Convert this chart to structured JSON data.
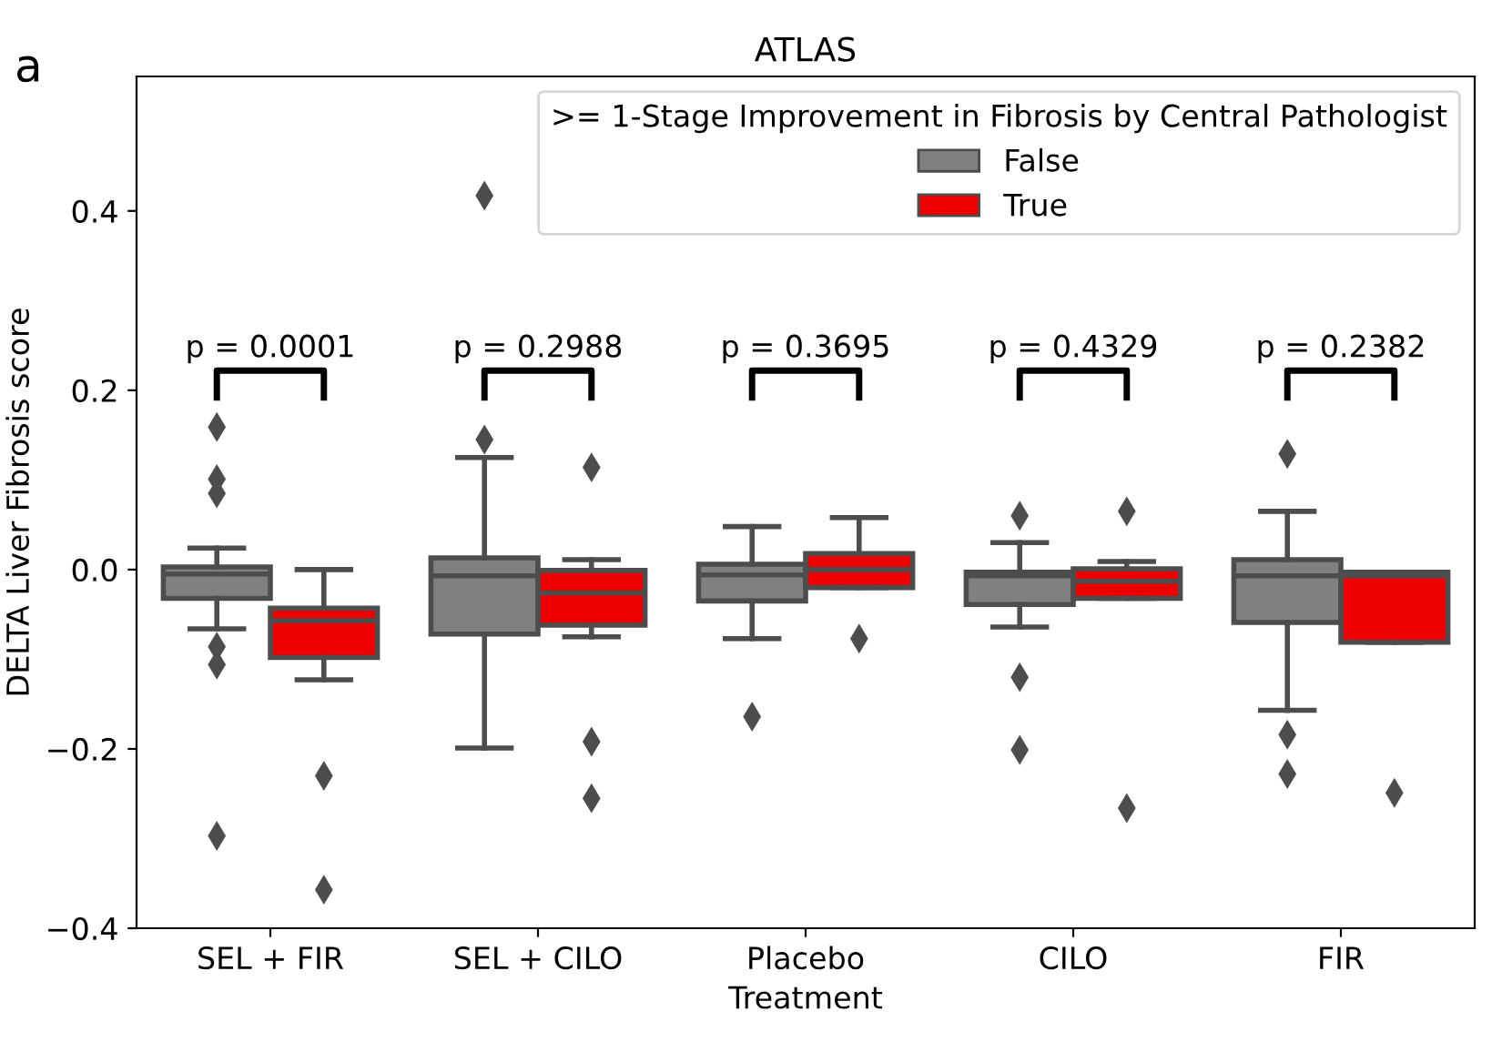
{
  "chart_data": {
    "type": "box",
    "title": "ATLAS",
    "xlabel": "Treatment",
    "ylabel": "DELTA Liver Fibrosis score",
    "legend_title": ">= 1-Stage Improvement in Fibrosis by Central Pathologist",
    "legend": "top right",
    "grid": false,
    "categories": [
      "SEL + FIR",
      "SEL + CILO",
      "Placebo",
      "CILO",
      "FIR"
    ],
    "ylim": [
      -0.4,
      0.55
    ],
    "yticks": [
      {
        "value": -0.4,
        "label": "−0.4"
      },
      {
        "value": -0.2,
        "label": "−0.2"
      },
      {
        "value": 0.0,
        "label": "0.0"
      },
      {
        "value": 0.2,
        "label": "0.2"
      },
      {
        "value": 0.4,
        "label": "0.4"
      }
    ],
    "marker": "diamond",
    "series": [
      {
        "name": "False",
        "color": "#808080",
        "boxes": [
          {
            "low": -0.066,
            "q1": -0.032,
            "median": -0.005,
            "q3": 0.003,
            "high": 0.024,
            "outliers": [
              0.159,
              0.101,
              0.085,
              -0.086,
              -0.106,
              -0.297
            ]
          },
          {
            "low": -0.199,
            "q1": -0.072,
            "median": -0.007,
            "q3": 0.013,
            "high": 0.125,
            "outliers": [
              0.145,
              0.417
            ]
          },
          {
            "low": -0.077,
            "q1": -0.035,
            "median": -0.006,
            "q3": 0.006,
            "high": 0.048,
            "outliers": [
              -0.164
            ]
          },
          {
            "low": -0.064,
            "q1": -0.039,
            "median": -0.007,
            "q3": -0.003,
            "high": 0.03,
            "outliers": [
              0.06,
              -0.12,
              -0.201
            ]
          },
          {
            "low": -0.157,
            "q1": -0.059,
            "median": -0.007,
            "q3": 0.011,
            "high": 0.065,
            "outliers": [
              0.129,
              -0.184,
              -0.228
            ]
          }
        ]
      },
      {
        "name": "True",
        "color": "#ee0000",
        "boxes": [
          {
            "low": -0.123,
            "q1": -0.098,
            "median": -0.057,
            "q3": -0.043,
            "high": 0.0,
            "outliers": [
              -0.23,
              -0.357
            ]
          },
          {
            "low": -0.075,
            "q1": -0.062,
            "median": -0.026,
            "q3": -0.001,
            "high": 0.011,
            "outliers": [
              0.114,
              -0.192,
              -0.255
            ]
          },
          {
            "low": -0.02,
            "q1": -0.02,
            "median": 0.0,
            "q3": 0.018,
            "high": 0.058,
            "outliers": [
              -0.077
            ]
          },
          {
            "low": -0.032,
            "q1": -0.032,
            "median": -0.013,
            "q3": 0.001,
            "high": 0.009,
            "outliers": [
              0.065,
              -0.266
            ]
          },
          {
            "low": -0.081,
            "q1": -0.081,
            "median": -0.007,
            "q3": -0.003,
            "high": -0.003,
            "outliers": [
              -0.249
            ]
          }
        ]
      }
    ],
    "annotations": [
      "a",
      "p = 0.0001",
      "p = 0.2988",
      "p = 0.3695",
      "p = 0.4329",
      "p = 0.2382"
    ]
  }
}
